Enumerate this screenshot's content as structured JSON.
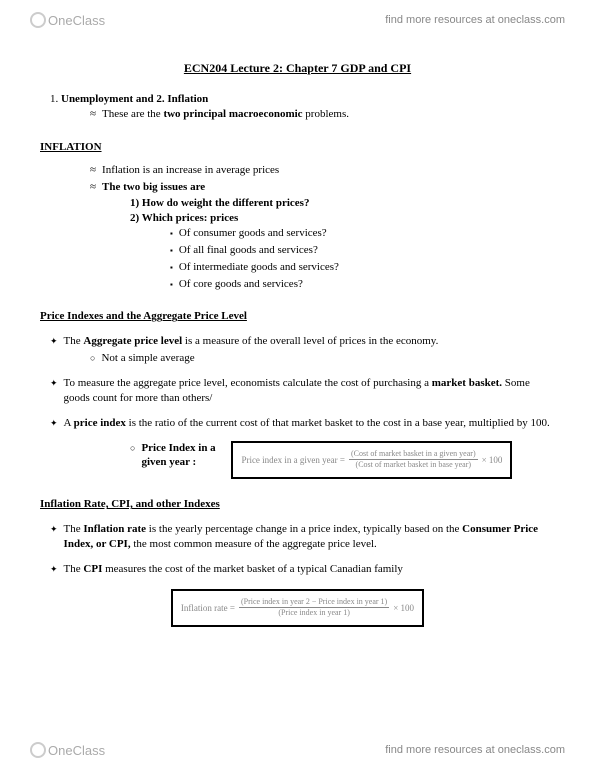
{
  "brand": {
    "name": "OneClass",
    "tagline": "find more resources at oneclass.com"
  },
  "title": "ECN204 Lecture 2: Chapter 7 GDP and CPI",
  "intro": {
    "item1_prefix": "1. ",
    "item1_bold": "Unemployment and 2. Inflation",
    "sub_prefix": "These are the ",
    "sub_bold": "two principal macroeconomic",
    "sub_suffix": " problems."
  },
  "sections": {
    "inflation": {
      "heading": "INFLATION",
      "b1": "Inflation is an increase in average prices",
      "b2_bold": "The two big issues are",
      "q1_bold": "1)  How do weight the different prices?",
      "q2_bold": "2)  Which prices: prices",
      "s1": "Of consumer goods and services?",
      "s2": "Of all final goods and services?",
      "s3": "Of intermediate goods and services?",
      "s4": "Of core goods and services?"
    },
    "agg": {
      "heading": "Price Indexes and the Aggregate Price Level",
      "p1_pre": "The ",
      "p1_bold": "Aggregate price level",
      "p1_post": " is a measure of the overall level of prices in the economy.",
      "p1_sub": "Not a simple average",
      "p2_pre": "To measure the aggregate price level, economists calculate the cost of purchasing a ",
      "p2_bold": "market basket.",
      "p2_post": " Some goods count for more than others/",
      "p3_pre": "A ",
      "p3_bold": "price index",
      "p3_post": " is the ratio of the current cost of that market basket to the cost in a base year, multiplied by 100.",
      "formula_label_bold": "Price Index in a given year  :",
      "formula_lhs": "Price index in a given year =",
      "formula_num": "(Cost of market basket in a given year)",
      "formula_den": "(Cost of market basket in base year)",
      "formula_tail": "× 100"
    },
    "rate": {
      "heading": "Inflation Rate, CPI, and other Indexes",
      "p1_pre": "The ",
      "p1_bold1": "Inflation rate",
      "p1_mid": " is the yearly percentage change in a price index, typically based on the ",
      "p1_bold2": "Consumer Price Index, or CPI,",
      "p1_post": " the most common measure of the aggregate price level.",
      "p2_pre": "The ",
      "p2_bold": "CPI",
      "p2_post": " measures the cost of the market basket of a typical Canadian family",
      "formula_lhs": "Inflation rate =",
      "formula_num": "(Price index in year 2 − Price index in year 1)",
      "formula_den": "(Price index in year 1)",
      "formula_tail": "× 100"
    }
  }
}
